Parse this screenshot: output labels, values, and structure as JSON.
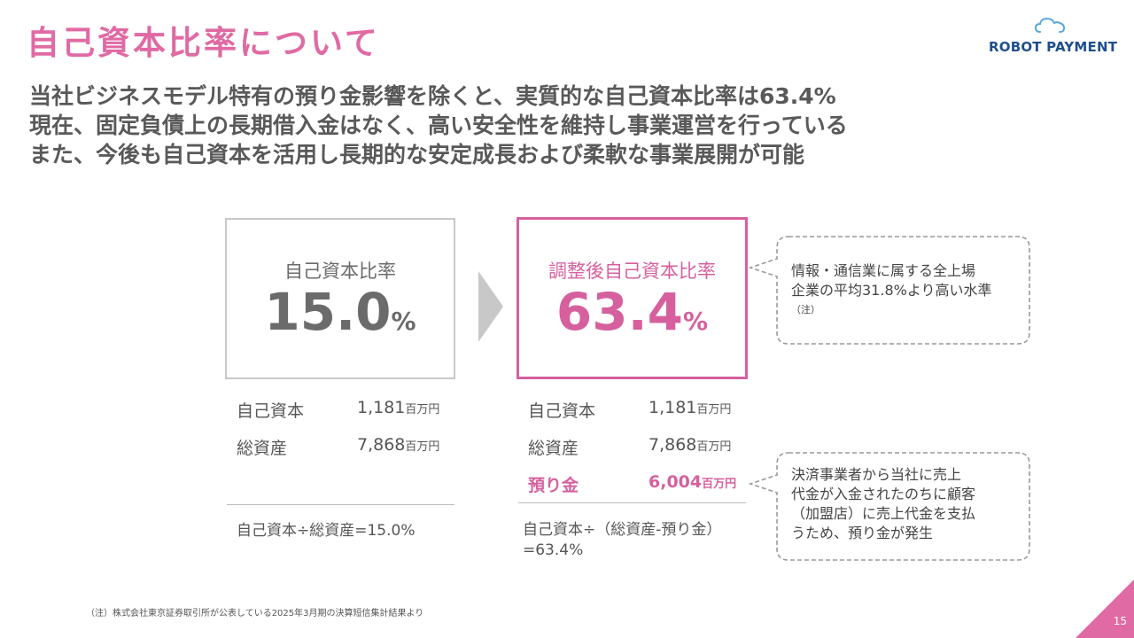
{
  "title": "自己資本比率について",
  "logo": {
    "text_robot": "ROBOT",
    "text_payment": "PAYMENT"
  },
  "lead": [
    "当社ビジネスモデル特有の預り金影響を除くと、実質的な自己資本比率は63.4%",
    "現在、固定負債上の長期借入金はなく、高い安全性を維持し事業運営を行っている",
    "また、今後も自己資本を活用し長期的な安定成長および柔軟な事業展開が可能"
  ],
  "left_card": {
    "label": "自己資本比率",
    "value": "15.0",
    "unit": "%",
    "rows": [
      {
        "label": "自己資本",
        "value": "1,181",
        "unit": "百万円"
      },
      {
        "label": "総資産",
        "value": "7,868",
        "unit": "百万円"
      }
    ],
    "formula": "自己資本÷総資産=15.0%"
  },
  "right_card": {
    "label": "調整後自己資本比率",
    "value": "63.4",
    "unit": "%",
    "rows": [
      {
        "label": "自己資本",
        "value": "1,181",
        "unit": "百万円"
      },
      {
        "label": "総資産",
        "value": "7,868",
        "unit": "百万円"
      },
      {
        "label": "預り金",
        "value": "6,004",
        "unit": "百万円"
      }
    ],
    "formula_line1": "自己資本÷（総資産-預り金）",
    "formula_line2": "=63.4%"
  },
  "callout_top": {
    "line1": "情報・通信業に属する全上場",
    "line2": "企業の平均31.8%より高い水準",
    "note": "（注）"
  },
  "callout_bottom": {
    "lines": [
      "決済事業者から当社に売上",
      "代金が入金されたのちに顧客",
      "（加盟店）に売上代金を支払",
      "うため、預り金が発生"
    ]
  },
  "footnote": "（注）株式会社東京証券取引所が公表している2025年3月期の決算短信集計結果より",
  "page_number": "15",
  "colors": {
    "accent_pink": "#d6609e",
    "title_pink": "#e06aa3",
    "text_gray": "#595959",
    "logo_blue": "#1f4f8c"
  }
}
